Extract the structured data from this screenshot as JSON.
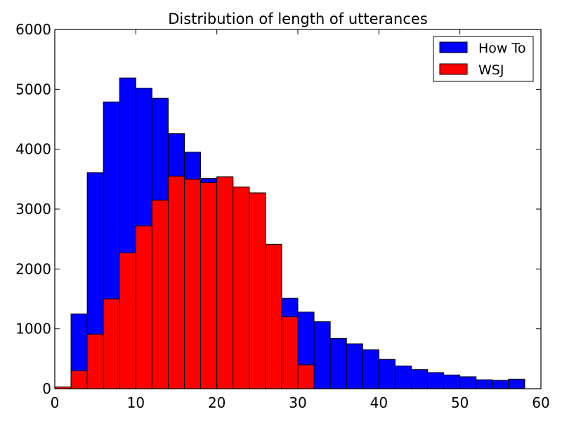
{
  "chart_data": {
    "type": "bar",
    "title": "Distribution of length of utterances",
    "xlabel": "",
    "ylabel": "",
    "xlim": [
      0,
      60
    ],
    "ylim": [
      0,
      6000
    ],
    "xticks": [
      0,
      10,
      20,
      30,
      40,
      50,
      60
    ],
    "yticks": [
      0,
      1000,
      2000,
      3000,
      4000,
      5000,
      6000
    ],
    "grid": false,
    "legend_position": "top-right",
    "bin_edges": [
      0,
      2,
      4,
      6,
      8,
      10,
      12,
      14,
      16,
      18,
      20,
      22,
      24,
      26,
      28,
      30,
      32,
      34,
      36,
      38,
      40,
      42,
      44,
      46,
      48,
      50,
      52,
      54,
      56,
      58
    ],
    "series": [
      {
        "name": "How To",
        "color": "#0000ff",
        "values": [
          30,
          1250,
          3610,
          4790,
          5190,
          5020,
          4850,
          4260,
          3950,
          3510,
          3480,
          3370,
          3270,
          2410,
          1510,
          1280,
          1120,
          840,
          750,
          650,
          490,
          380,
          320,
          270,
          230,
          200,
          150,
          140,
          160
        ]
      },
      {
        "name": "WSJ",
        "color": "#ff0000",
        "values": [
          30,
          300,
          910,
          1500,
          2270,
          2720,
          3150,
          3550,
          3500,
          3440,
          3540,
          3370,
          3270,
          2410,
          1200,
          400,
          0,
          0,
          0,
          0,
          0,
          0,
          0,
          0,
          0,
          0,
          0,
          0,
          0
        ]
      }
    ]
  }
}
